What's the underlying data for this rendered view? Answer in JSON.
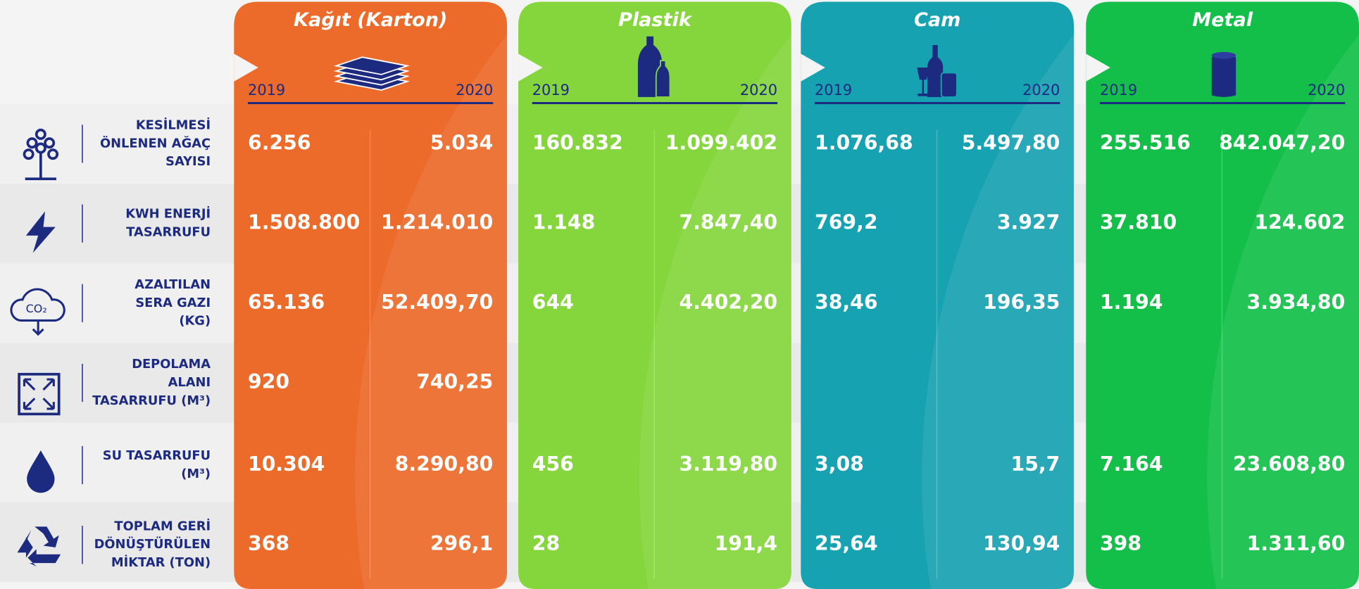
{
  "materials": [
    {
      "name": "Kağıt (Karton)",
      "color": "#ec6a2a",
      "years": [
        "2019",
        "2020"
      ]
    },
    {
      "name": "Plastik",
      "color": "#84d63c",
      "years": [
        "2019",
        "2020"
      ]
    },
    {
      "name": "Cam",
      "color": "#17a2b2",
      "years": [
        "2019",
        "2020"
      ]
    },
    {
      "name": "Metal",
      "color": "#13bf48",
      "years": [
        "2019",
        "2020"
      ]
    }
  ],
  "rows": [
    {
      "label": [
        "KESİLMESİ",
        "ÖNLENEN AĞAÇ",
        "SAYISI"
      ],
      "values": [
        [
          "6.256",
          "5.034"
        ],
        [
          "160.832",
          "1.099.402"
        ],
        [
          "1.076,68",
          "5.497,80"
        ],
        [
          "255.516",
          "842.047,20"
        ]
      ]
    },
    {
      "label": [
        "KWH ENERJİ",
        "TASARRUFU"
      ],
      "values": [
        [
          "1.508.800",
          "1.214.010"
        ],
        [
          "1.148",
          "7.847,40"
        ],
        [
          "769,2",
          "3.927"
        ],
        [
          "37.810",
          "124.602"
        ]
      ]
    },
    {
      "label": [
        "AZALTILAN",
        "SERA GAZI",
        "(KG)"
      ],
      "values": [
        [
          "65.136",
          "52.409,70"
        ],
        [
          "644",
          "4.402,20"
        ],
        [
          "38,46",
          "196,35"
        ],
        [
          "1.194",
          "3.934,80"
        ]
      ]
    },
    {
      "label": [
        "DEPOLAMA",
        "ALANI",
        "TASARRUFU (M³)"
      ],
      "values": [
        [
          "920",
          "740,25"
        ],
        null,
        null,
        null
      ]
    },
    {
      "label": [
        "SU TASARRUFU",
        "(M³)"
      ],
      "values": [
        [
          "10.304",
          "8.290,80"
        ],
        [
          "456",
          "3.119,80"
        ],
        [
          "3,08",
          "15,7"
        ],
        [
          "7.164",
          "23.608,80"
        ]
      ]
    },
    {
      "label": [
        "TOPLAM GERİ",
        "DÖNÜŞTÜRÜLEN",
        "MİKTAR (TON)"
      ],
      "values": [
        [
          "368",
          "296,1"
        ],
        [
          "28",
          "191,4"
        ],
        [
          "25,64",
          "130,94"
        ],
        [
          "398",
          "1.311,60"
        ]
      ]
    }
  ]
}
